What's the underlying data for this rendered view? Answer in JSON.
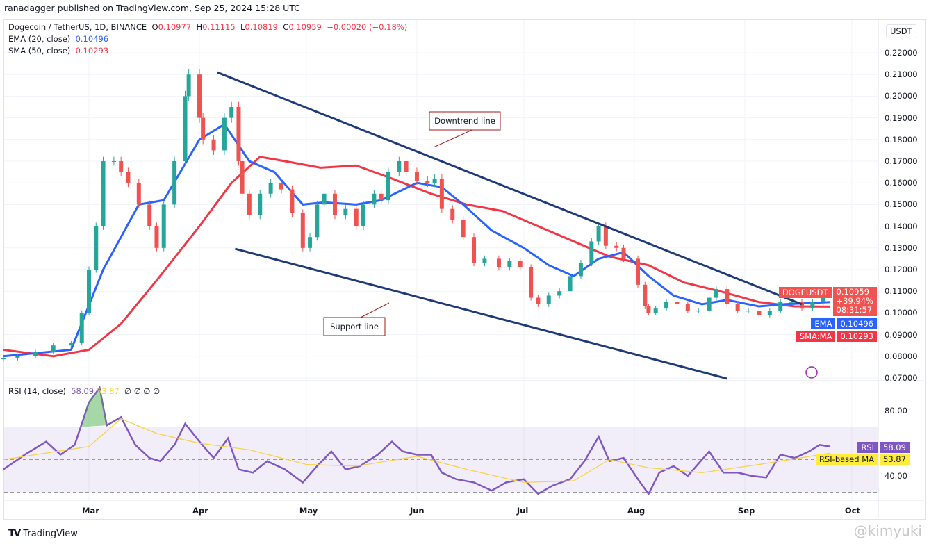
{
  "header": {
    "published": "ranadagger published on TradingView.com, Sep 25, 2024 15:28 UTC"
  },
  "legend": {
    "symbol": "Dogecoin / TetherUS, 1D, BINANCE",
    "o_label": "O",
    "o": "0.10977",
    "h_label": "H",
    "h": "0.11115",
    "l_label": "L",
    "l": "0.10819",
    "c_label": "C",
    "c": "0.10959",
    "change": "−0.00020 (−0.18%)",
    "ema_label": "EMA (20, close)",
    "ema": "0.10496",
    "sma_label": "SMA (50, close)",
    "sma": "0.10293",
    "rsi_label": "RSI (14, close)",
    "rsi": "58.09",
    "rsi_ma": "53.87",
    "rsi_extra": "∅ ∅ ∅ ∅"
  },
  "price_axis": {
    "currency": "USDT",
    "ticks": [
      "0.22000",
      "0.21000",
      "0.20000",
      "0.19000",
      "0.18000",
      "0.17000",
      "0.16000",
      "0.15000",
      "0.14000",
      "0.13000",
      "0.12000",
      "0.11000",
      "0.10000",
      "0.09000",
      "0.08000",
      "0.07000"
    ]
  },
  "rsi_axis": {
    "ticks": [
      "80.00",
      "40.00"
    ]
  },
  "time_axis": {
    "ticks": [
      {
        "label": "Mar",
        "date": "2024-03-01"
      },
      {
        "label": "Apr",
        "date": "2024-04-01"
      },
      {
        "label": "May",
        "date": "2024-05-01"
      },
      {
        "label": "Jun",
        "date": "2024-06-01"
      },
      {
        "label": "Jul",
        "date": "2024-07-01"
      },
      {
        "label": "Aug",
        "date": "2024-08-01"
      },
      {
        "label": "Sep",
        "date": "2024-09-01"
      },
      {
        "label": "Oct",
        "date": "2024-10-01"
      }
    ]
  },
  "tags": {
    "symbol": "DOGEUSDT",
    "price": "0.10959",
    "pct": "+39.94%",
    "countdown": "08:31:57",
    "ema_tag": "EMA",
    "ema_val": "0.10496",
    "sma_tag": "SMA:MA",
    "sma_val": "0.10293",
    "rsi_tag": "RSI",
    "rsi_val": "58.09",
    "rsima_tag": "RSI-based MA",
    "rsima_val": "53.87"
  },
  "annotations": {
    "downtrend": "Downtrend line",
    "support": "Support line"
  },
  "colors": {
    "up": "#26a69a",
    "down": "#ef5350",
    "ema": "#2962ff",
    "sma": "#f23645",
    "trend": "#1e3a78",
    "rsi": "#7e57c2",
    "rsi_ma": "#f7d24a"
  },
  "footer": {
    "brand": "TradingView",
    "watermark": "@kimyuki"
  },
  "chart_data": {
    "type": "candlestick",
    "closes": [
      [
        "02-06",
        0.079
      ],
      [
        "02-10",
        0.08
      ],
      [
        "02-15",
        0.082
      ],
      [
        "02-20",
        0.085
      ],
      [
        "02-25",
        0.086
      ],
      [
        "02-28",
        0.1
      ],
      [
        "03-01",
        0.12
      ],
      [
        "03-03",
        0.14
      ],
      [
        "03-05",
        0.17
      ],
      [
        "03-08",
        0.17
      ],
      [
        "03-10",
        0.165
      ],
      [
        "03-12",
        0.16
      ],
      [
        "03-15",
        0.15
      ],
      [
        "03-18",
        0.14
      ],
      [
        "03-20",
        0.13
      ],
      [
        "03-22",
        0.15
      ],
      [
        "03-25",
        0.17
      ],
      [
        "03-28",
        0.2
      ],
      [
        "03-29",
        0.21
      ],
      [
        "04-01",
        0.19
      ],
      [
        "04-02",
        0.18
      ],
      [
        "04-05",
        0.175
      ],
      [
        "04-08",
        0.19
      ],
      [
        "04-10",
        0.195
      ],
      [
        "04-12",
        0.17
      ],
      [
        "04-13",
        0.155
      ],
      [
        "04-15",
        0.145
      ],
      [
        "04-18",
        0.155
      ],
      [
        "04-21",
        0.16
      ],
      [
        "04-24",
        0.157
      ],
      [
        "04-27",
        0.146
      ],
      [
        "04-30",
        0.13
      ],
      [
        "05-02",
        0.135
      ],
      [
        "05-04",
        0.15
      ],
      [
        "05-06",
        0.155
      ],
      [
        "05-09",
        0.145
      ],
      [
        "05-12",
        0.148
      ],
      [
        "05-15",
        0.14
      ],
      [
        "05-17",
        0.15
      ],
      [
        "05-20",
        0.155
      ],
      [
        "05-22",
        0.152
      ],
      [
        "05-24",
        0.165
      ],
      [
        "05-27",
        0.17
      ],
      [
        "05-29",
        0.165
      ],
      [
        "06-01",
        0.161
      ],
      [
        "06-04",
        0.16
      ],
      [
        "06-06",
        0.162
      ],
      [
        "06-08",
        0.148
      ],
      [
        "06-11",
        0.143
      ],
      [
        "06-14",
        0.135
      ],
      [
        "06-17",
        0.123
      ],
      [
        "06-20",
        0.125
      ],
      [
        "06-24",
        0.121
      ],
      [
        "06-27",
        0.124
      ],
      [
        "06-30",
        0.121
      ],
      [
        "07-03",
        0.107
      ],
      [
        "07-05",
        0.104
      ],
      [
        "07-08",
        0.108
      ],
      [
        "07-11",
        0.11
      ],
      [
        "07-14",
        0.117
      ],
      [
        "07-17",
        0.123
      ],
      [
        "07-20",
        0.133
      ],
      [
        "07-22",
        0.14
      ],
      [
        "07-24",
        0.131
      ],
      [
        "07-27",
        0.13
      ],
      [
        "07-29",
        0.125
      ],
      [
        "08-02",
        0.113
      ],
      [
        "08-04",
        0.103
      ],
      [
        "08-05",
        0.1
      ],
      [
        "08-07",
        0.102
      ],
      [
        "08-10",
        0.105
      ],
      [
        "08-13",
        0.104
      ],
      [
        "08-16",
        0.101
      ],
      [
        "08-19",
        0.101
      ],
      [
        "08-22",
        0.107
      ],
      [
        "08-24",
        0.111
      ],
      [
        "08-27",
        0.104
      ],
      [
        "08-30",
        0.101
      ],
      [
        "09-02",
        0.101
      ],
      [
        "09-05",
        0.099
      ],
      [
        "09-08",
        0.101
      ],
      [
        "09-11",
        0.105
      ],
      [
        "09-14",
        0.105
      ],
      [
        "09-17",
        0.102
      ],
      [
        "09-20",
        0.105
      ],
      [
        "09-23",
        0.109
      ],
      [
        "09-25",
        0.1096
      ]
    ],
    "ema20": [
      [
        "02-06",
        0.08
      ],
      [
        "02-25",
        0.083
      ],
      [
        "03-05",
        0.12
      ],
      [
        "03-15",
        0.15
      ],
      [
        "03-22",
        0.152
      ],
      [
        "04-01",
        0.18
      ],
      [
        "04-08",
        0.187
      ],
      [
        "04-15",
        0.17
      ],
      [
        "04-22",
        0.165
      ],
      [
        "04-30",
        0.15
      ],
      [
        "05-06",
        0.151
      ],
      [
        "05-15",
        0.15
      ],
      [
        "05-22",
        0.152
      ],
      [
        "06-01",
        0.16
      ],
      [
        "06-08",
        0.158
      ],
      [
        "06-14",
        0.15
      ],
      [
        "06-22",
        0.138
      ],
      [
        "07-01",
        0.13
      ],
      [
        "07-08",
        0.122
      ],
      [
        "07-15",
        0.117
      ],
      [
        "07-22",
        0.125
      ],
      [
        "07-29",
        0.128
      ],
      [
        "08-05",
        0.117
      ],
      [
        "08-12",
        0.108
      ],
      [
        "08-20",
        0.104
      ],
      [
        "08-27",
        0.106
      ],
      [
        "09-05",
        0.103
      ],
      [
        "09-12",
        0.104
      ],
      [
        "09-25",
        0.105
      ]
    ],
    "sma50": [
      [
        "02-06",
        0.083
      ],
      [
        "02-20",
        0.08
      ],
      [
        "03-01",
        0.083
      ],
      [
        "03-10",
        0.095
      ],
      [
        "03-20",
        0.115
      ],
      [
        "04-01",
        0.14
      ],
      [
        "04-10",
        0.16
      ],
      [
        "04-18",
        0.172
      ],
      [
        "04-25",
        0.17
      ],
      [
        "05-05",
        0.167
      ],
      [
        "05-15",
        0.168
      ],
      [
        "05-25",
        0.162
      ],
      [
        "06-05",
        0.155
      ],
      [
        "06-15",
        0.15
      ],
      [
        "06-25",
        0.147
      ],
      [
        "07-05",
        0.14
      ],
      [
        "07-15",
        0.133
      ],
      [
        "07-25",
        0.126
      ],
      [
        "08-05",
        0.122
      ],
      [
        "08-15",
        0.114
      ],
      [
        "08-25",
        0.11
      ],
      [
        "09-05",
        0.105
      ],
      [
        "09-15",
        0.103
      ],
      [
        "09-25",
        0.1029
      ]
    ],
    "downtrend_line": [
      [
        "04-06",
        0.211
      ],
      [
        "09-17",
        0.104
      ]
    ],
    "support_line": [
      [
        "04-11",
        0.1296
      ],
      [
        "08-27",
        0.0697
      ]
    ],
    "rsi": [
      [
        "02-06",
        44
      ],
      [
        "02-12",
        53
      ],
      [
        "02-18",
        61
      ],
      [
        "02-22",
        53
      ],
      [
        "02-26",
        59
      ],
      [
        "03-01",
        85
      ],
      [
        "03-04",
        94
      ],
      [
        "03-06",
        71
      ],
      [
        "03-10",
        76
      ],
      [
        "03-14",
        59
      ],
      [
        "03-18",
        51
      ],
      [
        "03-21",
        49
      ],
      [
        "03-25",
        59
      ],
      [
        "03-28",
        72
      ],
      [
        "04-01",
        61
      ],
      [
        "04-05",
        51
      ],
      [
        "04-09",
        63
      ],
      [
        "04-12",
        44
      ],
      [
        "04-16",
        42
      ],
      [
        "04-20",
        49
      ],
      [
        "04-25",
        44
      ],
      [
        "04-30",
        36
      ],
      [
        "05-04",
        46
      ],
      [
        "05-08",
        55
      ],
      [
        "05-12",
        44
      ],
      [
        "05-16",
        46
      ],
      [
        "05-21",
        53
      ],
      [
        "05-25",
        61
      ],
      [
        "05-28",
        55
      ],
      [
        "06-01",
        53
      ],
      [
        "06-05",
        53
      ],
      [
        "06-08",
        42
      ],
      [
        "06-12",
        38
      ],
      [
        "06-17",
        36
      ],
      [
        "06-22",
        31
      ],
      [
        "06-26",
        36
      ],
      [
        "07-01",
        38
      ],
      [
        "07-05",
        29
      ],
      [
        "07-09",
        34
      ],
      [
        "07-14",
        38
      ],
      [
        "07-18",
        49
      ],
      [
        "07-22",
        64
      ],
      [
        "07-25",
        49
      ],
      [
        "07-29",
        51
      ],
      [
        "08-02",
        38
      ],
      [
        "08-05",
        29
      ],
      [
        "08-08",
        42
      ],
      [
        "08-12",
        46
      ],
      [
        "08-16",
        40
      ],
      [
        "08-22",
        55
      ],
      [
        "08-26",
        42
      ],
      [
        "08-30",
        42
      ],
      [
        "09-03",
        40
      ],
      [
        "09-07",
        39
      ],
      [
        "09-11",
        53
      ],
      [
        "09-15",
        51
      ],
      [
        "09-19",
        55
      ],
      [
        "09-22",
        59
      ],
      [
        "09-25",
        58
      ]
    ],
    "rsi_ma": [
      [
        "02-06",
        50
      ],
      [
        "03-01",
        58
      ],
      [
        "03-10",
        75
      ],
      [
        "03-20",
        66
      ],
      [
        "04-01",
        60
      ],
      [
        "04-15",
        56
      ],
      [
        "05-01",
        47
      ],
      [
        "05-15",
        46
      ],
      [
        "06-01",
        52
      ],
      [
        "06-15",
        44
      ],
      [
        "07-01",
        36
      ],
      [
        "07-15",
        37
      ],
      [
        "07-25",
        50
      ],
      [
        "08-05",
        45
      ],
      [
        "08-20",
        42
      ],
      [
        "09-05",
        47
      ],
      [
        "09-25",
        54
      ]
    ],
    "rsi_bands": [
      70,
      50,
      30
    ],
    "year": 2024
  }
}
